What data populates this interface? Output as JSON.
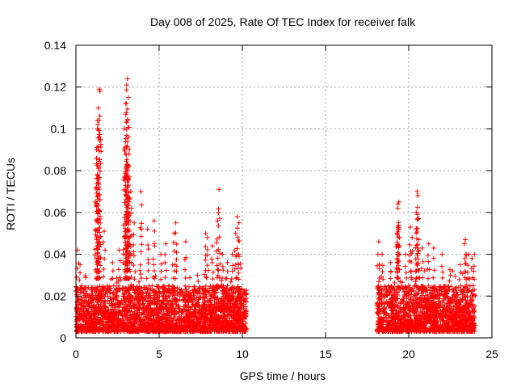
{
  "chart_data": {
    "type": "scatter",
    "title": "Day 008 of 2025, Rate Of TEC Index for receiver falk",
    "xlabel": "GPS time / hours",
    "ylabel": "ROTI / TECUs",
    "xlim": [
      0,
      25
    ],
    "ylim": [
      0,
      0.14
    ],
    "x_ticks": [
      "0",
      "5",
      "10",
      "15",
      "20",
      "25"
    ],
    "y_ticks": [
      "0",
      "0.02",
      "0.04",
      "0.06",
      "0.08",
      "0.1",
      "0.12",
      "0.14"
    ],
    "grid": true,
    "marker": "plus",
    "color": "#ff0000",
    "segments": [
      {
        "x_start": 0.0,
        "x_end": 10.25,
        "y_min": 0.003,
        "y_typical": 0.025
      },
      {
        "x_start": 18.1,
        "x_end": 24.0,
        "y_min": 0.003,
        "y_typical": 0.025
      }
    ],
    "peaks": [
      {
        "x": 0.1,
        "y": 0.042
      },
      {
        "x": 0.25,
        "y": 0.035
      },
      {
        "x": 1.2,
        "y": 0.0715
      },
      {
        "x": 1.25,
        "y": 0.086
      },
      {
        "x": 1.3,
        "y": 0.1
      },
      {
        "x": 1.35,
        "y": 0.11
      },
      {
        "x": 1.4,
        "y": 0.119
      },
      {
        "x": 1.45,
        "y": 0.118
      },
      {
        "x": 1.3,
        "y": 0.104
      },
      {
        "x": 1.7,
        "y": 0.051
      },
      {
        "x": 1.3,
        "y": 0.044
      },
      {
        "x": 2.2,
        "y": 0.036
      },
      {
        "x": 2.6,
        "y": 0.042
      },
      {
        "x": 2.9,
        "y": 0.1
      },
      {
        "x": 3.0,
        "y": 0.112
      },
      {
        "x": 3.05,
        "y": 0.121
      },
      {
        "x": 3.1,
        "y": 0.124
      },
      {
        "x": 3.15,
        "y": 0.115
      },
      {
        "x": 3.1,
        "y": 0.094
      },
      {
        "x": 3.0,
        "y": 0.088
      },
      {
        "x": 3.1,
        "y": 0.083
      },
      {
        "x": 3.2,
        "y": 0.077
      },
      {
        "x": 3.3,
        "y": 0.07
      },
      {
        "x": 3.2,
        "y": 0.065
      },
      {
        "x": 3.0,
        "y": 0.059
      },
      {
        "x": 3.5,
        "y": 0.055
      },
      {
        "x": 3.9,
        "y": 0.07
      },
      {
        "x": 4.3,
        "y": 0.052
      },
      {
        "x": 4.7,
        "y": 0.056
      },
      {
        "x": 5.1,
        "y": 0.04
      },
      {
        "x": 5.4,
        "y": 0.045
      },
      {
        "x": 6.0,
        "y": 0.055
      },
      {
        "x": 5.9,
        "y": 0.05
      },
      {
        "x": 6.6,
        "y": 0.046
      },
      {
        "x": 7.3,
        "y": 0.03
      },
      {
        "x": 7.8,
        "y": 0.05
      },
      {
        "x": 7.9,
        "y": 0.048
      },
      {
        "x": 8.2,
        "y": 0.044
      },
      {
        "x": 8.5,
        "y": 0.056
      },
      {
        "x": 8.6,
        "y": 0.071
      },
      {
        "x": 8.8,
        "y": 0.04
      },
      {
        "x": 9.1,
        "y": 0.036
      },
      {
        "x": 9.4,
        "y": 0.04
      },
      {
        "x": 9.6,
        "y": 0.05
      },
      {
        "x": 9.7,
        "y": 0.058
      },
      {
        "x": 9.8,
        "y": 0.055
      },
      {
        "x": 18.2,
        "y": 0.046
      },
      {
        "x": 18.4,
        "y": 0.04
      },
      {
        "x": 18.9,
        "y": 0.036
      },
      {
        "x": 19.3,
        "y": 0.05
      },
      {
        "x": 19.35,
        "y": 0.064
      },
      {
        "x": 19.4,
        "y": 0.065
      },
      {
        "x": 19.35,
        "y": 0.062
      },
      {
        "x": 19.4,
        "y": 0.052
      },
      {
        "x": 19.8,
        "y": 0.04
      },
      {
        "x": 20.1,
        "y": 0.053
      },
      {
        "x": 20.2,
        "y": 0.048
      },
      {
        "x": 20.45,
        "y": 0.06
      },
      {
        "x": 20.5,
        "y": 0.07
      },
      {
        "x": 20.55,
        "y": 0.068
      },
      {
        "x": 20.6,
        "y": 0.047
      },
      {
        "x": 20.8,
        "y": 0.043
      },
      {
        "x": 21.2,
        "y": 0.045
      },
      {
        "x": 21.5,
        "y": 0.043
      },
      {
        "x": 22.0,
        "y": 0.04
      },
      {
        "x": 22.5,
        "y": 0.03
      },
      {
        "x": 23.1,
        "y": 0.035
      },
      {
        "x": 23.35,
        "y": 0.045
      },
      {
        "x": 23.4,
        "y": 0.047
      },
      {
        "x": 23.6,
        "y": 0.04
      },
      {
        "x": 23.8,
        "y": 0.038
      },
      {
        "x": 23.95,
        "y": 0.04
      }
    ]
  }
}
